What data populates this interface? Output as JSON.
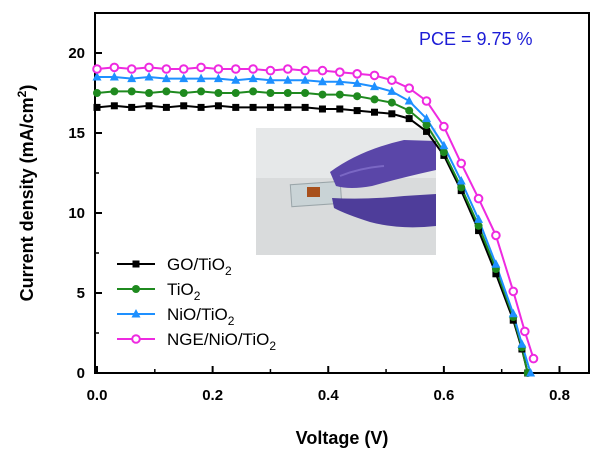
{
  "chart_data": {
    "type": "line",
    "title": "",
    "xlabel": "Voltage (V)",
    "ylabel_main": "Current density (mA/cm",
    "ylabel_sup": "2",
    "ylabel_close": ")",
    "xlim": [
      0.0,
      0.85
    ],
    "ylim": [
      0,
      22.5
    ],
    "xticks": [
      0.0,
      0.2,
      0.4,
      0.6,
      0.8
    ],
    "xtick_labels": [
      "0.0",
      "0.2",
      "0.4",
      "0.6",
      "0.8"
    ],
    "yticks": [
      0,
      5,
      10,
      15,
      20
    ],
    "ytick_labels": [
      "0",
      "5",
      "10",
      "15",
      "20"
    ],
    "annotation": "PCE = 9.75 %",
    "inset_photo": "photo of a transparent device held between gloved fingers",
    "series": [
      {
        "name": "GO/TiO2",
        "label_main": "GO/TiO",
        "label_sub": "2",
        "label_tail": "",
        "color": "#000000",
        "marker": "square",
        "x": [
          0.0,
          0.03,
          0.06,
          0.09,
          0.12,
          0.15,
          0.18,
          0.21,
          0.24,
          0.27,
          0.3,
          0.33,
          0.36,
          0.39,
          0.42,
          0.45,
          0.48,
          0.51,
          0.54,
          0.57,
          0.6,
          0.63,
          0.66,
          0.69,
          0.72,
          0.735,
          0.745
        ],
        "y": [
          16.6,
          16.7,
          16.6,
          16.7,
          16.6,
          16.7,
          16.6,
          16.7,
          16.6,
          16.6,
          16.6,
          16.6,
          16.6,
          16.5,
          16.5,
          16.4,
          16.3,
          16.2,
          15.9,
          15.1,
          13.6,
          11.4,
          8.9,
          6.2,
          3.3,
          1.5,
          0.0
        ]
      },
      {
        "name": "TiO2",
        "label_main": "TiO",
        "label_sub": "2",
        "label_tail": "",
        "color": "#1f8a1f",
        "marker": "circle",
        "x": [
          0.0,
          0.03,
          0.06,
          0.09,
          0.12,
          0.15,
          0.18,
          0.21,
          0.24,
          0.27,
          0.3,
          0.33,
          0.36,
          0.39,
          0.42,
          0.45,
          0.48,
          0.51,
          0.54,
          0.57,
          0.6,
          0.63,
          0.66,
          0.69,
          0.72,
          0.735,
          0.745
        ],
        "y": [
          17.5,
          17.6,
          17.6,
          17.5,
          17.6,
          17.5,
          17.6,
          17.5,
          17.5,
          17.6,
          17.5,
          17.5,
          17.5,
          17.4,
          17.4,
          17.3,
          17.1,
          16.9,
          16.4,
          15.5,
          13.8,
          11.6,
          9.2,
          6.5,
          3.5,
          1.6,
          0.0
        ]
      },
      {
        "name": "NiO/TiO2",
        "label_main": "NiO/TiO",
        "label_sub": "2",
        "label_tail": "",
        "color": "#1e90ff",
        "marker": "triangle",
        "x": [
          0.0,
          0.03,
          0.06,
          0.09,
          0.12,
          0.15,
          0.18,
          0.21,
          0.24,
          0.27,
          0.3,
          0.33,
          0.36,
          0.39,
          0.42,
          0.45,
          0.48,
          0.51,
          0.54,
          0.57,
          0.6,
          0.63,
          0.66,
          0.69,
          0.72,
          0.735,
          0.75
        ],
        "y": [
          18.5,
          18.5,
          18.4,
          18.5,
          18.4,
          18.4,
          18.4,
          18.4,
          18.3,
          18.4,
          18.3,
          18.3,
          18.3,
          18.2,
          18.2,
          18.1,
          17.9,
          17.6,
          17.0,
          15.9,
          14.2,
          12.0,
          9.6,
          6.8,
          3.7,
          1.8,
          0.0
        ]
      },
      {
        "name": "NGE/NiO/TiO2",
        "label_main": "NGE/NiO/TiO",
        "label_sub": "2",
        "label_tail": "",
        "color": "#ee2ae0",
        "marker": "circle-open",
        "x": [
          0.0,
          0.03,
          0.06,
          0.09,
          0.12,
          0.15,
          0.18,
          0.21,
          0.24,
          0.27,
          0.3,
          0.33,
          0.36,
          0.39,
          0.42,
          0.45,
          0.48,
          0.51,
          0.54,
          0.57,
          0.6,
          0.63,
          0.66,
          0.69,
          0.72,
          0.74,
          0.755
        ],
        "y": [
          19.0,
          19.1,
          19.0,
          19.1,
          19.0,
          19.0,
          19.1,
          19.0,
          19.0,
          19.0,
          18.9,
          19.0,
          18.9,
          18.9,
          18.8,
          18.7,
          18.6,
          18.3,
          17.8,
          17.0,
          15.4,
          13.1,
          10.9,
          8.6,
          5.1,
          2.6,
          0.9
        ]
      }
    ]
  }
}
